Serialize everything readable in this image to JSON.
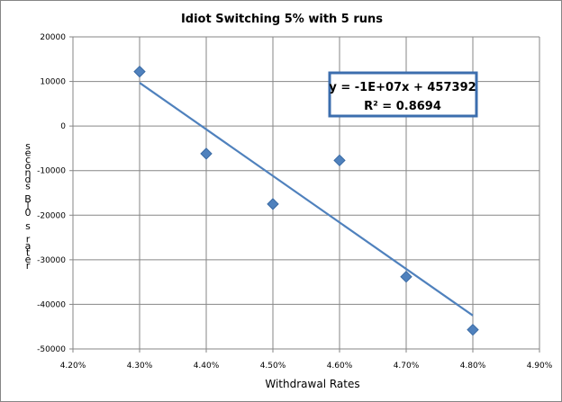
{
  "chart_data": {
    "type": "scatter",
    "title": "Idiot Switching 5% with 5 runs",
    "xlabel": "Withdrawal Rates",
    "ylabel": "seconds Bl0 s rater",
    "xlim": [
      0.042,
      0.049
    ],
    "ylim": [
      -50000,
      20000
    ],
    "x_ticks": [
      "4.20%",
      "4.30%",
      "4.40%",
      "4.50%",
      "4.60%",
      "4.70%",
      "4.80%",
      "4.90%"
    ],
    "y_ticks": [
      "20000",
      "10000",
      "0",
      "-10000",
      "-20000",
      "-30000",
      "-40000",
      "-50000"
    ],
    "grid": true,
    "series": [
      {
        "x": [
          0.043,
          0.044,
          0.045,
          0.046,
          0.047,
          0.048
        ],
        "y": [
          12200,
          -6200,
          -17500,
          -7700,
          -33800,
          -45700
        ]
      }
    ],
    "trendline": {
      "type": "linear",
      "x_range": [
        0.043,
        0.048
      ],
      "y_range": [
        9700,
        -42500
      ],
      "equation": "y = -1E+07x + 457392",
      "r_squared": "R² = 0.8694"
    },
    "colors": {
      "marker": "#4f81bd",
      "marker_stroke": "#3a6aa3",
      "trendline": "#4f81bd",
      "equation_border": "#3c6eae",
      "grid": "#868686"
    }
  }
}
